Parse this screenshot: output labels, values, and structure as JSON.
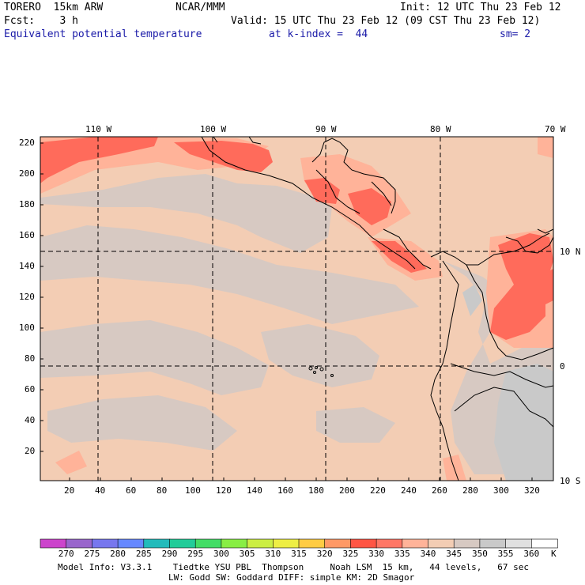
{
  "header": {
    "model": "TORERO  15km ARW",
    "org": "NCAR/MMM",
    "init": "Init: 12 UTC Thu 23 Feb 12",
    "fcst": "Fcst:    3 h",
    "valid": "Valid: 15 UTC Thu 23 Feb 12 (09 CST Thu 23 Feb 12)",
    "field": "Equivalent potential temperature",
    "level": "at k-index =  44",
    "smooth": "sm= 2"
  },
  "map": {
    "lon_labels": [
      "110 W",
      "100 W",
      "90 W",
      "80 W",
      "70 W"
    ],
    "lat_labels": [
      "10 N",
      "0",
      "10 S"
    ],
    "grid_x_labels": [
      "20",
      "40",
      "60",
      "80",
      "100",
      "120",
      "140",
      "160",
      "180",
      "200",
      "220",
      "240",
      "260",
      "280",
      "300",
      "320"
    ],
    "grid_y_labels": [
      "20",
      "40",
      "60",
      "80",
      "100",
      "120",
      "140",
      "160",
      "180",
      "200",
      "220"
    ]
  },
  "colorbar": {
    "unit": "K",
    "levels": [
      "270",
      "275",
      "280",
      "285",
      "290",
      "295",
      "300",
      "305",
      "310",
      "315",
      "320",
      "325",
      "330",
      "335",
      "340",
      "345",
      "350",
      "355",
      "360"
    ],
    "colors": [
      "#cc44cc",
      "#9966cc",
      "#7777ee",
      "#6688ff",
      "#22bbbb",
      "#22cc99",
      "#44dd66",
      "#88ee44",
      "#ccee44",
      "#eeee44",
      "#ffcc44",
      "#ff9966",
      "#ff5544",
      "#ff7766",
      "#ffb399",
      "#f3cdb4",
      "#d7c9c2",
      "#c9c9c9",
      "#e0e0e0",
      "#ffffff"
    ]
  },
  "footer": {
    "line1": "Model Info: V3.3.1    Tiedtke YSU PBL  Thompson     Noah LSM  15 km,   44 levels,   67 sec",
    "line2": "LW: Godd SW: Goddard DIFF: simple KM: 2D Smagor"
  }
}
